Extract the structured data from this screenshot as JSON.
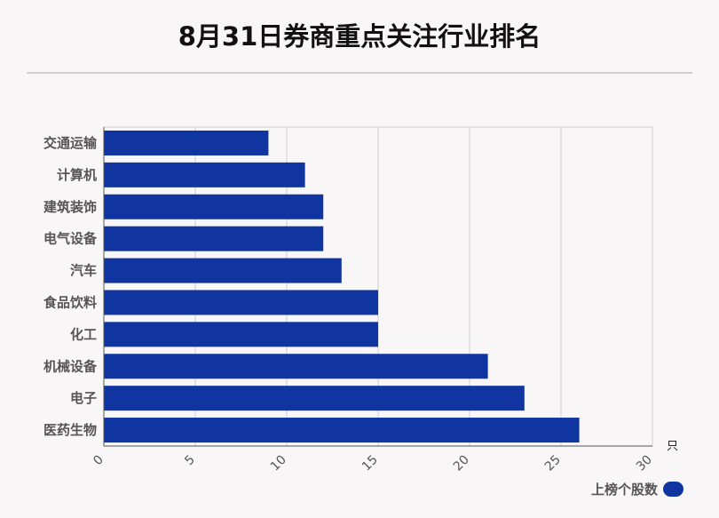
{
  "title": "8月31日券商重点关注行业排名",
  "legend": {
    "label": "上榜个股数",
    "color": "#1035a0"
  },
  "chart_data": {
    "type": "bar",
    "orientation": "horizontal",
    "title": "8月31日券商重点关注行业排名",
    "categories": [
      "交通运输",
      "计算机",
      "建筑装饰",
      "电气设备",
      "汽车",
      "食品饮料",
      "化工",
      "机械设备",
      "电子",
      "医药生物"
    ],
    "series": [
      {
        "name": "上榜个股数",
        "values": [
          9,
          11,
          12,
          12,
          13,
          15,
          15,
          21,
          23,
          26
        ],
        "color": "#1035a0"
      }
    ],
    "xlim": [
      0,
      30
    ],
    "xticks": [
      "0",
      "5",
      "10",
      "15",
      "20",
      "25",
      "30"
    ],
    "xunit": "只",
    "grid": true,
    "legend_position": "bottom-right"
  }
}
